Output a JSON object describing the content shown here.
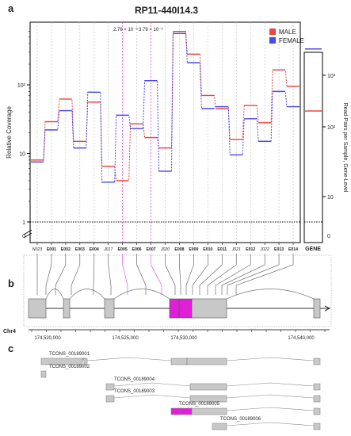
{
  "panel_labels": [
    "a",
    "b",
    "c"
  ],
  "chart_data": {
    "type": "line",
    "title": "RP11-440I14.3",
    "ylabel": "Relative Coverage",
    "y2label": "Read-Pairs per Sample, Gene-Level",
    "yscale": "log",
    "ylim": [
      1,
      800
    ],
    "y_ticks": [
      "1",
      "10",
      "10²"
    ],
    "y_zero_label": "0",
    "y2_ticks": [
      "10",
      "10²",
      "10³"
    ],
    "y2_zero_label": "0",
    "gene_panel_label": "GENE",
    "legend": [
      "MALE",
      "FEMALE"
    ],
    "legend_position": "top-right",
    "colors": {
      "male": "#e8463e",
      "female": "#4a4ae6",
      "highlight": "#e040e0"
    },
    "categories": [
      "N023",
      "E001",
      "E002",
      "E003",
      "E004",
      "J017",
      "E005",
      "E006",
      "E007",
      "J020",
      "E008",
      "E009",
      "E010",
      "E011",
      "J021",
      "E012",
      "J022",
      "E013",
      "E014"
    ],
    "category_style": [
      "italic",
      "bold",
      "bold",
      "bold",
      "bold",
      "italic",
      "bold",
      "bold",
      "bold",
      "italic",
      "bold",
      "bold",
      "bold",
      "bold",
      "italic",
      "bold",
      "italic",
      "bold",
      "bold"
    ],
    "series": [
      {
        "name": "MALE",
        "values": [
          8,
          29,
          62,
          15,
          56,
          6.5,
          4,
          27,
          17,
          12,
          600,
          280,
          70,
          45,
          16,
          50,
          28,
          165,
          95
        ]
      },
      {
        "name": "FEMALE",
        "values": [
          7.5,
          22,
          42,
          12,
          78,
          3.8,
          36,
          23,
          115,
          5.5,
          560,
          210,
          45,
          48,
          9.5,
          32,
          15,
          80,
          48
        ]
      }
    ],
    "gene_level": {
      "MALE": 100,
      "FEMALE": 270
    },
    "annotations": [
      {
        "text": "2.76 × 10⁻⁵",
        "near": "E005"
      },
      {
        "text": "3.79 × 10⁻⁵",
        "near": "E007"
      }
    ],
    "highlighted_categories": [
      "E005",
      "E007"
    ],
    "genome_axis": {
      "chrom_label": "Chr4",
      "ticks": [
        "174,520,000",
        "174,525,000",
        "174,530,000",
        "174,540,000"
      ]
    },
    "transcripts": [
      {
        "name": "TCONS_00189001"
      },
      {
        "name": "TCONS_00189002"
      },
      {
        "name": "TCONS_00189004"
      },
      {
        "name": "TCONS_00189003"
      },
      {
        "name": "TCONS_00189005"
      },
      {
        "name": "TCONS_00189006"
      }
    ]
  }
}
